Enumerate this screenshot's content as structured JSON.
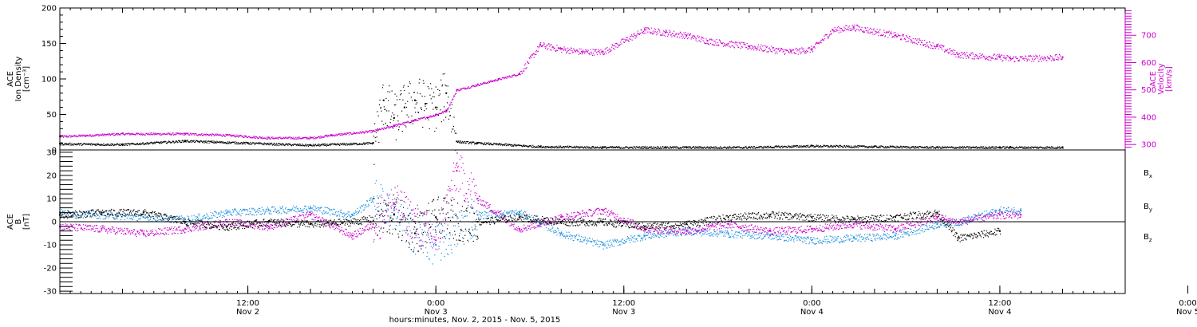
{
  "chart_data": [
    {
      "type": "scatter",
      "panel": "top",
      "left_axis": {
        "label_lines": [
          "ACE",
          "Ion Density",
          "[cm⁻³]"
        ],
        "ylim": [
          0,
          200
        ],
        "ticks": [
          "0",
          "50",
          "100",
          "150",
          "200"
        ],
        "color": "#000000"
      },
      "right_axis": {
        "label_lines": [
          "ACE",
          "Velocity",
          "[km/s]"
        ],
        "ylim": [
          280,
          800
        ],
        "ticks": [
          "300",
          "400",
          "500",
          "600",
          "700"
        ],
        "color": "#cc00cc"
      },
      "series": [
        {
          "name": "",
          "axis": "left",
          "color": "#000000",
          "hours": [
            0,
            6,
            12,
            18,
            24,
            30,
            31,
            32,
            33,
            34,
            35,
            36,
            37,
            38,
            40,
            46,
            52,
            58,
            60,
            66,
            72,
            78,
            84,
            90,
            91,
            96
          ],
          "values": [
            9,
            8,
            13,
            10,
            7,
            10,
            70,
            45,
            60,
            70,
            65,
            60,
            80,
            12,
            10,
            5,
            4,
            4,
            4,
            4,
            6,
            5,
            4,
            4,
            4,
            4
          ]
        },
        {
          "name": "",
          "axis": "right",
          "color": "#cc00cc",
          "hours": [
            0,
            6,
            12,
            16,
            20,
            24,
            26,
            30,
            32,
            34,
            36,
            37,
            38,
            40,
            42,
            44,
            46,
            48,
            50,
            52,
            56,
            58,
            60,
            62,
            66,
            70,
            72,
            74,
            76,
            80,
            84,
            86,
            90,
            91,
            96
          ],
          "values": [
            330,
            340,
            340,
            335,
            325,
            325,
            335,
            350,
            370,
            390,
            410,
            425,
            500,
            520,
            540,
            560,
            665,
            650,
            640,
            640,
            720,
            710,
            700,
            680,
            660,
            640,
            650,
            720,
            730,
            700,
            660,
            630,
            620,
            615,
            620
          ]
        }
      ]
    },
    {
      "type": "scatter",
      "panel": "bottom",
      "left_axis": {
        "label_lines": [
          "ACE",
          "B",
          "[nT]"
        ],
        "ylim": [
          -31,
          31
        ],
        "ticks": [
          "-30",
          "-20",
          "-10",
          "0",
          "10",
          "20",
          "30"
        ]
      },
      "zero_line": true,
      "series": [
        {
          "name": "B_x",
          "color": "#000000",
          "hours": [
            0,
            4,
            8,
            12,
            16,
            20,
            24,
            28,
            32,
            34,
            36,
            40,
            44,
            48,
            52,
            56,
            60,
            64,
            68,
            72,
            76,
            80,
            84,
            86,
            90
          ],
          "values": [
            3,
            4,
            4,
            0,
            -2,
            0,
            -1,
            0,
            3,
            -5,
            2,
            0,
            2,
            0,
            0,
            -2,
            -1,
            2,
            3,
            2,
            1,
            2,
            4,
            -7,
            -4
          ]
        },
        {
          "name": "B_y",
          "color": "#1f90e0",
          "hours": [
            0,
            4,
            8,
            12,
            16,
            20,
            24,
            28,
            30,
            32,
            34,
            36,
            40,
            44,
            48,
            52,
            56,
            60,
            64,
            68,
            72,
            76,
            80,
            84,
            86,
            90,
            92
          ],
          "values": [
            4,
            3,
            2,
            1,
            4,
            5,
            6,
            3,
            10,
            5,
            -5,
            -10,
            3,
            4,
            -5,
            -10,
            -6,
            -4,
            -5,
            -6,
            -8,
            -7,
            -6,
            -1,
            0,
            5,
            5
          ]
        },
        {
          "name": "B_z",
          "color": "#cc00cc",
          "hours": [
            0,
            4,
            8,
            12,
            16,
            20,
            24,
            28,
            30,
            32,
            34,
            36,
            38,
            40,
            44,
            48,
            52,
            56,
            60,
            64,
            68,
            72,
            76,
            80,
            84,
            86,
            90,
            92
          ],
          "values": [
            -2,
            -3,
            -5,
            -3,
            0,
            -2,
            3,
            -6,
            -1,
            8,
            0,
            -8,
            22,
            10,
            -3,
            2,
            5,
            -3,
            -4,
            -1,
            -4,
            -3,
            -1,
            -3,
            2,
            0,
            3,
            3
          ]
        }
      ]
    },
    {
      "type": "axis",
      "time_axis": {
        "xlim_hours": [
          0,
          102
        ],
        "ticks": [
          {
            "hour": 18,
            "time": "12:00",
            "date": "Nov 2"
          },
          {
            "hour": 36,
            "time": "0:00",
            "date": "Nov 3"
          },
          {
            "hour": 54,
            "time": "12:00",
            "date": "Nov 3"
          },
          {
            "hour": 72,
            "time": "0:00",
            "date": "Nov 4"
          },
          {
            "hour": 90,
            "time": "12:00",
            "date": "Nov 4"
          },
          {
            "hour": 108,
            "time": "0:00",
            "date": "Nov 5"
          }
        ],
        "xlabel": "hours:minutes, Nov.  2, 2015 - Nov.  5, 2015"
      }
    }
  ]
}
